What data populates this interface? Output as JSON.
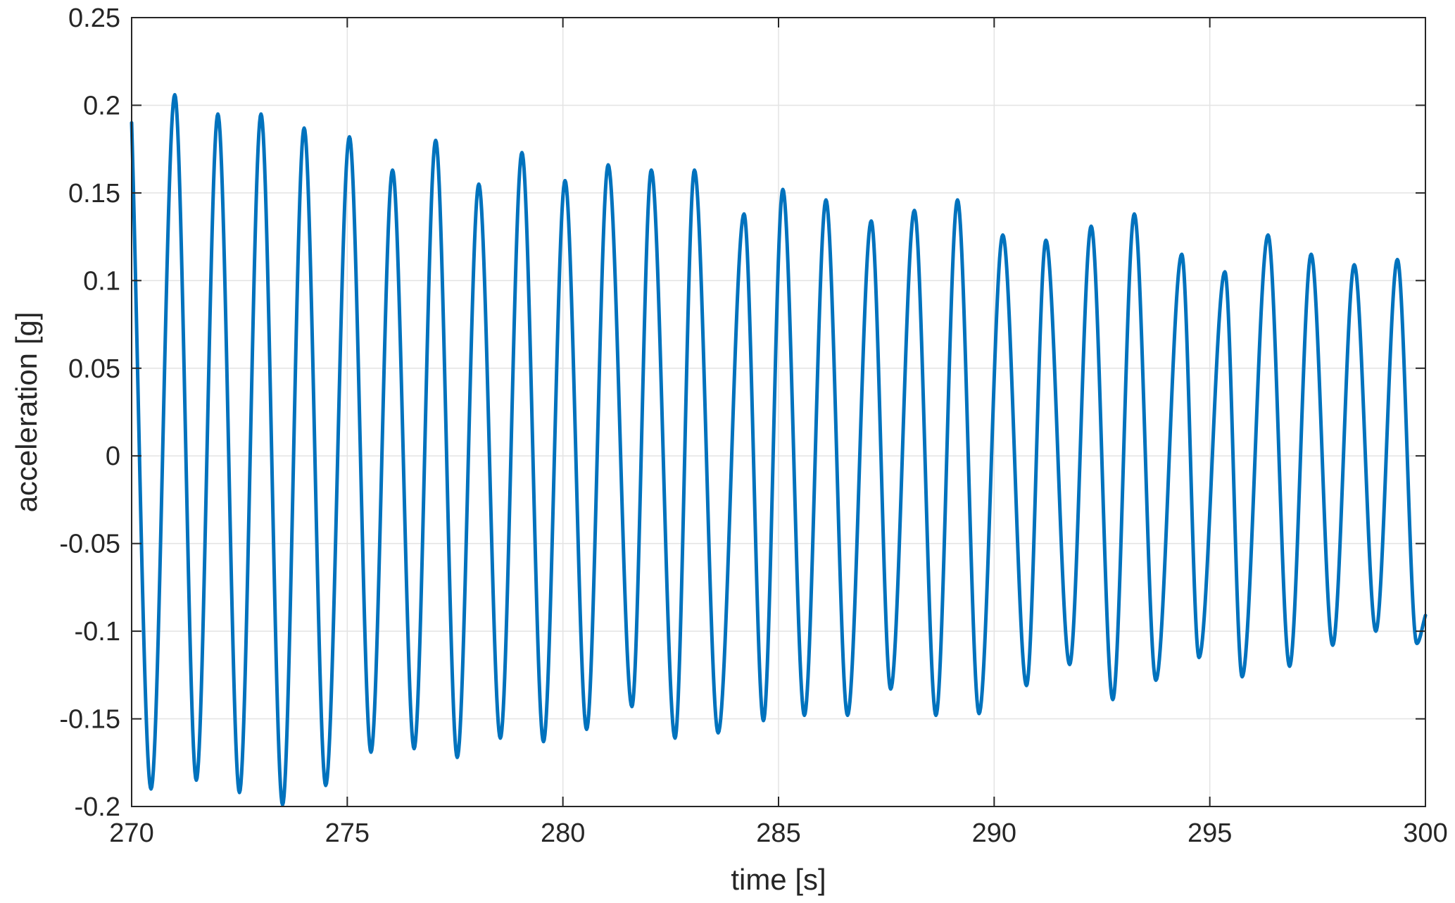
{
  "chart_data": {
    "type": "line",
    "title": "",
    "xlabel": "time [s]",
    "ylabel": "acceleration [g]",
    "xlim": [
      270,
      300
    ],
    "ylim": [
      -0.2,
      0.25
    ],
    "x_ticks": [
      270,
      275,
      280,
      285,
      290,
      295,
      300
    ],
    "x_tick_labels": [
      "270",
      "275",
      "280",
      "285",
      "290",
      "295",
      "300"
    ],
    "y_ticks": [
      -0.2,
      -0.15,
      -0.1,
      -0.05,
      0,
      0.05,
      0.1,
      0.15,
      0.2,
      0.25
    ],
    "y_tick_labels": [
      "-0.2",
      "-0.15",
      "-0.1",
      "-0.05",
      "0",
      "0.05",
      "0.1",
      "0.15",
      "0.2",
      "0.25"
    ],
    "grid": true,
    "line_color": "#0072BD",
    "series": [
      {
        "x": [
          270.0,
          270.45,
          271.0,
          271.5,
          272.0,
          272.5,
          273.0,
          273.5,
          274.0,
          274.5,
          275.05,
          275.55,
          276.05,
          276.55,
          277.05,
          277.55,
          278.05,
          278.55,
          279.05,
          279.55,
          280.05,
          280.55,
          281.05,
          281.6,
          282.05,
          282.6,
          283.05,
          283.6,
          284.2,
          284.65,
          285.1,
          285.6,
          286.1,
          286.6,
          287.15,
          287.6,
          288.15,
          288.65,
          289.15,
          289.65,
          290.2,
          290.75,
          291.2,
          291.75,
          292.25,
          292.75,
          293.25,
          293.75,
          294.35,
          294.75,
          295.35,
          295.75,
          296.35,
          296.85,
          297.35,
          297.85,
          298.35,
          298.85,
          299.35,
          299.8,
          300.0
        ],
        "y": [
          0.19,
          -0.19,
          0.206,
          -0.185,
          0.195,
          -0.192,
          0.195,
          -0.199,
          0.187,
          -0.188,
          0.182,
          -0.169,
          0.163,
          -0.167,
          0.18,
          -0.172,
          0.155,
          -0.161,
          0.173,
          -0.163,
          0.157,
          -0.156,
          0.166,
          -0.143,
          0.163,
          -0.161,
          0.163,
          -0.158,
          0.138,
          -0.151,
          0.152,
          -0.148,
          0.146,
          -0.148,
          0.134,
          -0.133,
          0.14,
          -0.148,
          0.146,
          -0.147,
          0.126,
          -0.131,
          0.123,
          -0.119,
          0.131,
          -0.139,
          0.138,
          -0.128,
          0.115,
          -0.115,
          0.105,
          -0.126,
          0.126,
          -0.12,
          0.115,
          -0.108,
          0.109,
          -0.1,
          0.112,
          -0.107,
          -0.091
        ]
      }
    ]
  }
}
